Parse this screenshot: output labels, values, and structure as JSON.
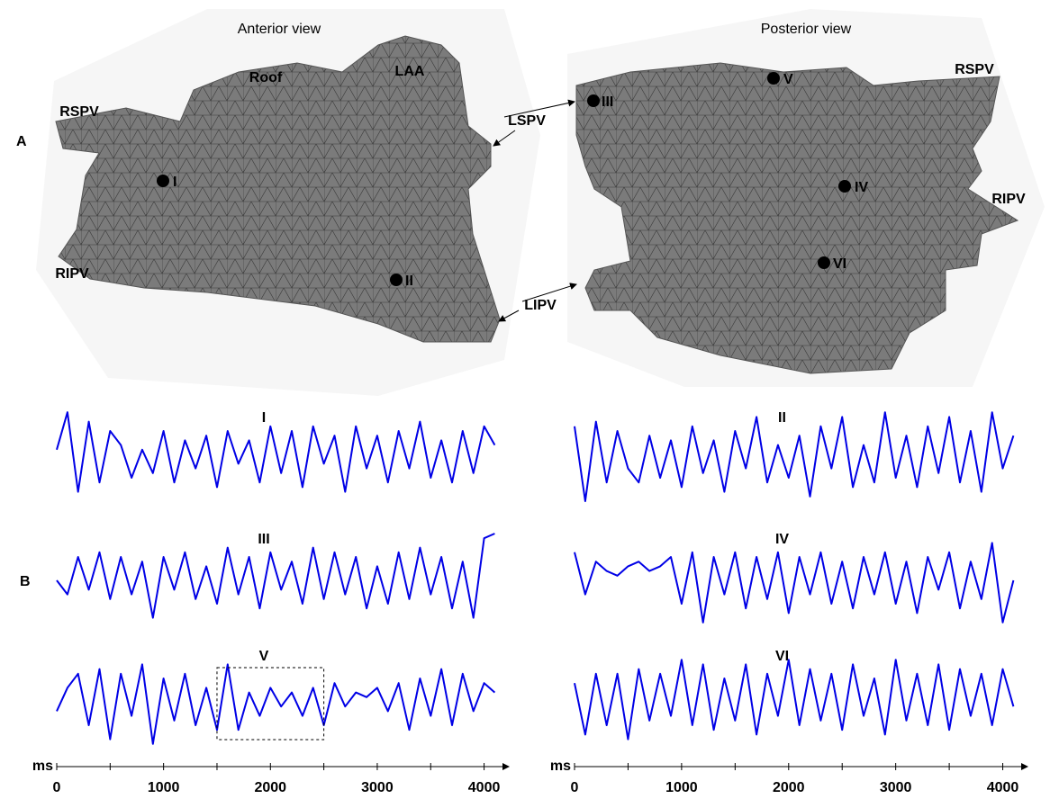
{
  "figure": {
    "panel_labels": [
      "A",
      "B"
    ],
    "views": [
      {
        "title": "Anterior view",
        "labels": [
          "RSPV",
          "Roof",
          "LAA",
          "RIPV"
        ],
        "sites": [
          "I",
          "II"
        ]
      },
      {
        "title": "Posterior view",
        "labels": [
          "RSPV",
          "RIPV"
        ],
        "sites": [
          "III",
          "IV",
          "V",
          "VI"
        ]
      }
    ],
    "shared_labels": [
      "LSPV",
      "LIPV"
    ]
  },
  "chart_data": [
    {
      "type": "line",
      "x_label": "ms",
      "xlim": [
        0,
        4130
      ],
      "ylim": [
        -1,
        1
      ],
      "xticks": [
        0,
        1000,
        2000,
        3000,
        4000
      ],
      "highlight_range": [
        1500,
        2500
      ],
      "x": [
        0,
        100,
        200,
        300,
        400,
        500,
        600,
        700,
        800,
        900,
        1000,
        1100,
        1200,
        1300,
        1400,
        1500,
        1600,
        1700,
        1800,
        1900,
        2000,
        2100,
        2200,
        2300,
        2400,
        2500,
        2600,
        2700,
        2800,
        2900,
        3000,
        3100,
        3200,
        3300,
        3400,
        3500,
        3600,
        3700,
        3800,
        3900,
        4000,
        4100
      ],
      "series": [
        {
          "name": "I",
          "color": "#0000e6",
          "values": [
            0.1,
            0.9,
            -0.8,
            0.7,
            -0.6,
            0.5,
            0.2,
            -0.5,
            0.1,
            -0.4,
            0.5,
            -0.6,
            0.3,
            -0.3,
            0.4,
            -0.7,
            0.5,
            -0.2,
            0.3,
            -0.6,
            0.6,
            -0.4,
            0.5,
            -0.7,
            0.6,
            -0.2,
            0.4,
            -0.8,
            0.6,
            -0.3,
            0.4,
            -0.6,
            0.5,
            -0.3,
            0.7,
            -0.5,
            0.3,
            -0.6,
            0.5,
            -0.4,
            0.6,
            0.2
          ]
        },
        {
          "name": "III",
          "color": "#0000e6",
          "values": [
            0.0,
            -0.3,
            0.5,
            -0.2,
            0.6,
            -0.4,
            0.5,
            -0.3,
            0.4,
            -0.8,
            0.5,
            -0.2,
            0.6,
            -0.4,
            0.3,
            -0.5,
            0.7,
            -0.3,
            0.5,
            -0.6,
            0.6,
            -0.2,
            0.4,
            -0.5,
            0.7,
            -0.4,
            0.6,
            -0.3,
            0.5,
            -0.6,
            0.3,
            -0.5,
            0.6,
            -0.4,
            0.7,
            -0.3,
            0.5,
            -0.6,
            0.4,
            -0.8,
            0.9,
            1.0
          ]
        },
        {
          "name": "V",
          "color": "#0000e6",
          "values": [
            -0.2,
            0.3,
            0.6,
            -0.5,
            0.7,
            -0.8,
            0.6,
            -0.3,
            0.8,
            -0.9,
            0.5,
            -0.4,
            0.6,
            -0.5,
            0.3,
            -0.6,
            0.8,
            -0.6,
            0.2,
            -0.3,
            0.3,
            -0.1,
            0.2,
            -0.3,
            0.3,
            -0.5,
            0.4,
            -0.1,
            0.2,
            0.1,
            0.3,
            -0.2,
            0.4,
            -0.6,
            0.5,
            -0.3,
            0.7,
            -0.5,
            0.6,
            -0.2,
            0.4,
            0.2
          ]
        }
      ]
    },
    {
      "type": "line",
      "x_label": "ms",
      "xlim": [
        0,
        4130
      ],
      "ylim": [
        -1,
        1
      ],
      "xticks": [
        0,
        1000,
        2000,
        3000,
        4000
      ],
      "x": [
        0,
        100,
        200,
        300,
        400,
        500,
        600,
        700,
        800,
        900,
        1000,
        1100,
        1200,
        1300,
        1400,
        1500,
        1600,
        1700,
        1800,
        1900,
        2000,
        2100,
        2200,
        2300,
        2400,
        2500,
        2600,
        2700,
        2800,
        2900,
        3000,
        3100,
        3200,
        3300,
        3400,
        3500,
        3600,
        3700,
        3800,
        3900,
        4000,
        4100
      ],
      "series": [
        {
          "name": "II",
          "color": "#0000e6",
          "values": [
            0.6,
            -1.0,
            0.7,
            -0.6,
            0.5,
            -0.3,
            -0.6,
            0.4,
            -0.5,
            0.3,
            -0.7,
            0.6,
            -0.4,
            0.3,
            -0.8,
            0.5,
            -0.3,
            0.8,
            -0.6,
            0.2,
            -0.5,
            0.4,
            -0.9,
            0.6,
            -0.3,
            0.8,
            -0.7,
            0.2,
            -0.6,
            0.9,
            -0.5,
            0.4,
            -0.7,
            0.6,
            -0.4,
            0.8,
            -0.6,
            0.5,
            -0.8,
            0.9,
            -0.3,
            0.4
          ]
        },
        {
          "name": "IV",
          "color": "#0000e6",
          "values": [
            0.6,
            -0.3,
            0.4,
            0.2,
            0.1,
            0.3,
            0.4,
            0.2,
            0.3,
            0.5,
            -0.5,
            0.6,
            -0.9,
            0.5,
            -0.3,
            0.6,
            -0.6,
            0.5,
            -0.4,
            0.6,
            -0.7,
            0.5,
            -0.3,
            0.6,
            -0.5,
            0.4,
            -0.6,
            0.5,
            -0.3,
            0.6,
            -0.5,
            0.4,
            -0.7,
            0.5,
            -0.2,
            0.6,
            -0.6,
            0.4,
            -0.4,
            0.8,
            -0.9,
            0.0
          ]
        },
        {
          "name": "VI",
          "color": "#0000e6",
          "values": [
            0.4,
            -0.7,
            0.6,
            -0.5,
            0.6,
            -0.8,
            0.7,
            -0.4,
            0.6,
            -0.3,
            0.9,
            -0.5,
            0.8,
            -0.6,
            0.5,
            -0.4,
            0.8,
            -0.7,
            0.6,
            -0.3,
            0.9,
            -0.5,
            0.7,
            -0.4,
            0.6,
            -0.6,
            0.8,
            -0.3,
            0.5,
            -0.7,
            0.9,
            -0.4,
            0.6,
            -0.5,
            0.8,
            -0.6,
            0.7,
            -0.3,
            0.6,
            -0.5,
            0.7,
            -0.1
          ]
        }
      ]
    }
  ]
}
